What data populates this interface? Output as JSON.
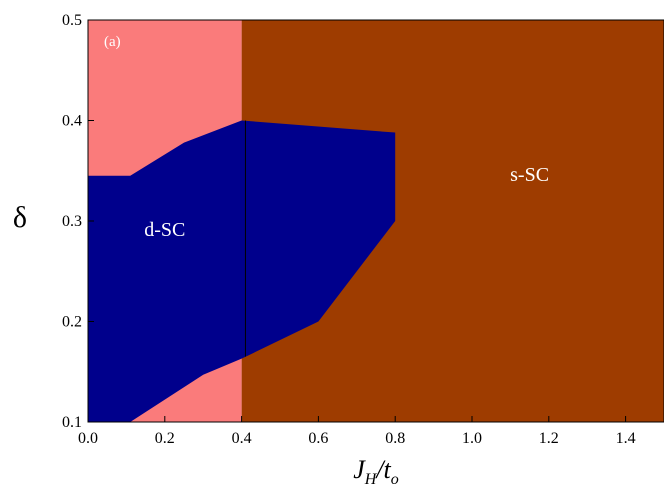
{
  "chart_data": {
    "type": "area",
    "panel_label": "(a)",
    "xlabel": {
      "main": "J",
      "sub1": "H",
      "sep": "/t",
      "sub2": "o"
    },
    "ylabel": "δ",
    "xlim": [
      0.0,
      1.5
    ],
    "ylim": [
      0.1,
      0.5
    ],
    "x_ticks": [
      "0.0",
      "0.2",
      "0.4",
      "0.6",
      "0.8",
      "1.0",
      "1.2",
      "1.4"
    ],
    "y_ticks": [
      "0.1",
      "0.2",
      "0.3",
      "0.4",
      "0.5"
    ],
    "grid": false,
    "regions": [
      {
        "name": "s-SC",
        "color": "#9e3c00",
        "label_color": "#ffffff",
        "label_at": [
          1.15,
          0.34
        ],
        "polygon": [
          [
            0.4,
            0.5
          ],
          [
            1.5,
            0.5
          ],
          [
            1.5,
            0.1
          ],
          [
            0.4,
            0.1
          ]
        ]
      },
      {
        "name": "",
        "color": "#fa7b7b",
        "polygon": [
          [
            0.0,
            0.5
          ],
          [
            0.4,
            0.5
          ],
          [
            0.4,
            0.1
          ],
          [
            0.0,
            0.1
          ]
        ]
      },
      {
        "name": "d-SC",
        "color": "#00008c",
        "label_color": "#ffffff",
        "label_at": [
          0.2,
          0.285
        ],
        "polygon": [
          [
            0.0,
            0.345
          ],
          [
            0.11,
            0.345
          ],
          [
            0.25,
            0.378
          ],
          [
            0.4,
            0.4
          ],
          [
            0.8,
            0.388
          ],
          [
            0.8,
            0.3
          ],
          [
            0.6,
            0.2
          ],
          [
            0.4,
            0.163
          ],
          [
            0.3,
            0.147
          ],
          [
            0.11,
            0.1
          ],
          [
            0.0,
            0.1
          ]
        ]
      }
    ],
    "boundaries": [
      {
        "points": [
          [
            0.41,
            0.4
          ],
          [
            0.41,
            0.165
          ]
        ],
        "color": "#000000"
      }
    ]
  }
}
